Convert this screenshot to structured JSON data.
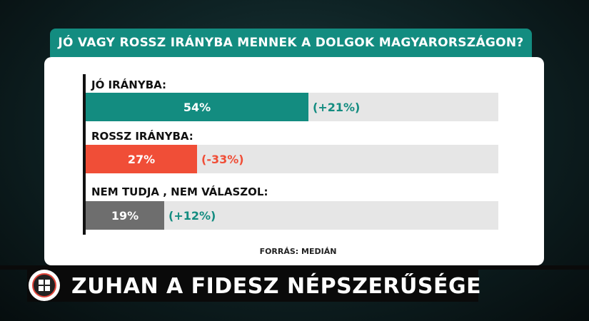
{
  "chart_data": {
    "type": "bar",
    "orientation": "horizontal",
    "title": "JÓ VAGY ROSSZ IRÁNYBA MENNEK A DOLGOK MAGYARORSZÁGON?",
    "xlim": [
      0,
      100
    ],
    "categories": [
      "JÓ IRÁNYBA:",
      "ROSSZ IRÁNYBA:",
      "NEM TUDJA , NEM VÁLASZOL:"
    ],
    "values": [
      54,
      27,
      19
    ],
    "value_labels": [
      "54%",
      "27%",
      "19%"
    ],
    "changes": [
      "(+21%)",
      "(-33%)",
      "(+12%)"
    ],
    "bar_colors": [
      "#138c80",
      "#f04e37",
      "#6e6e6e"
    ],
    "change_colors": [
      "#138c80",
      "#f04e37",
      "#138c80"
    ],
    "source": "FORRÁS: MEDIÁN"
  },
  "headline": "ZUHAN A FIDESZ NÉPSZERŰSÉGE",
  "logo_icon": "channel-logo-icon"
}
